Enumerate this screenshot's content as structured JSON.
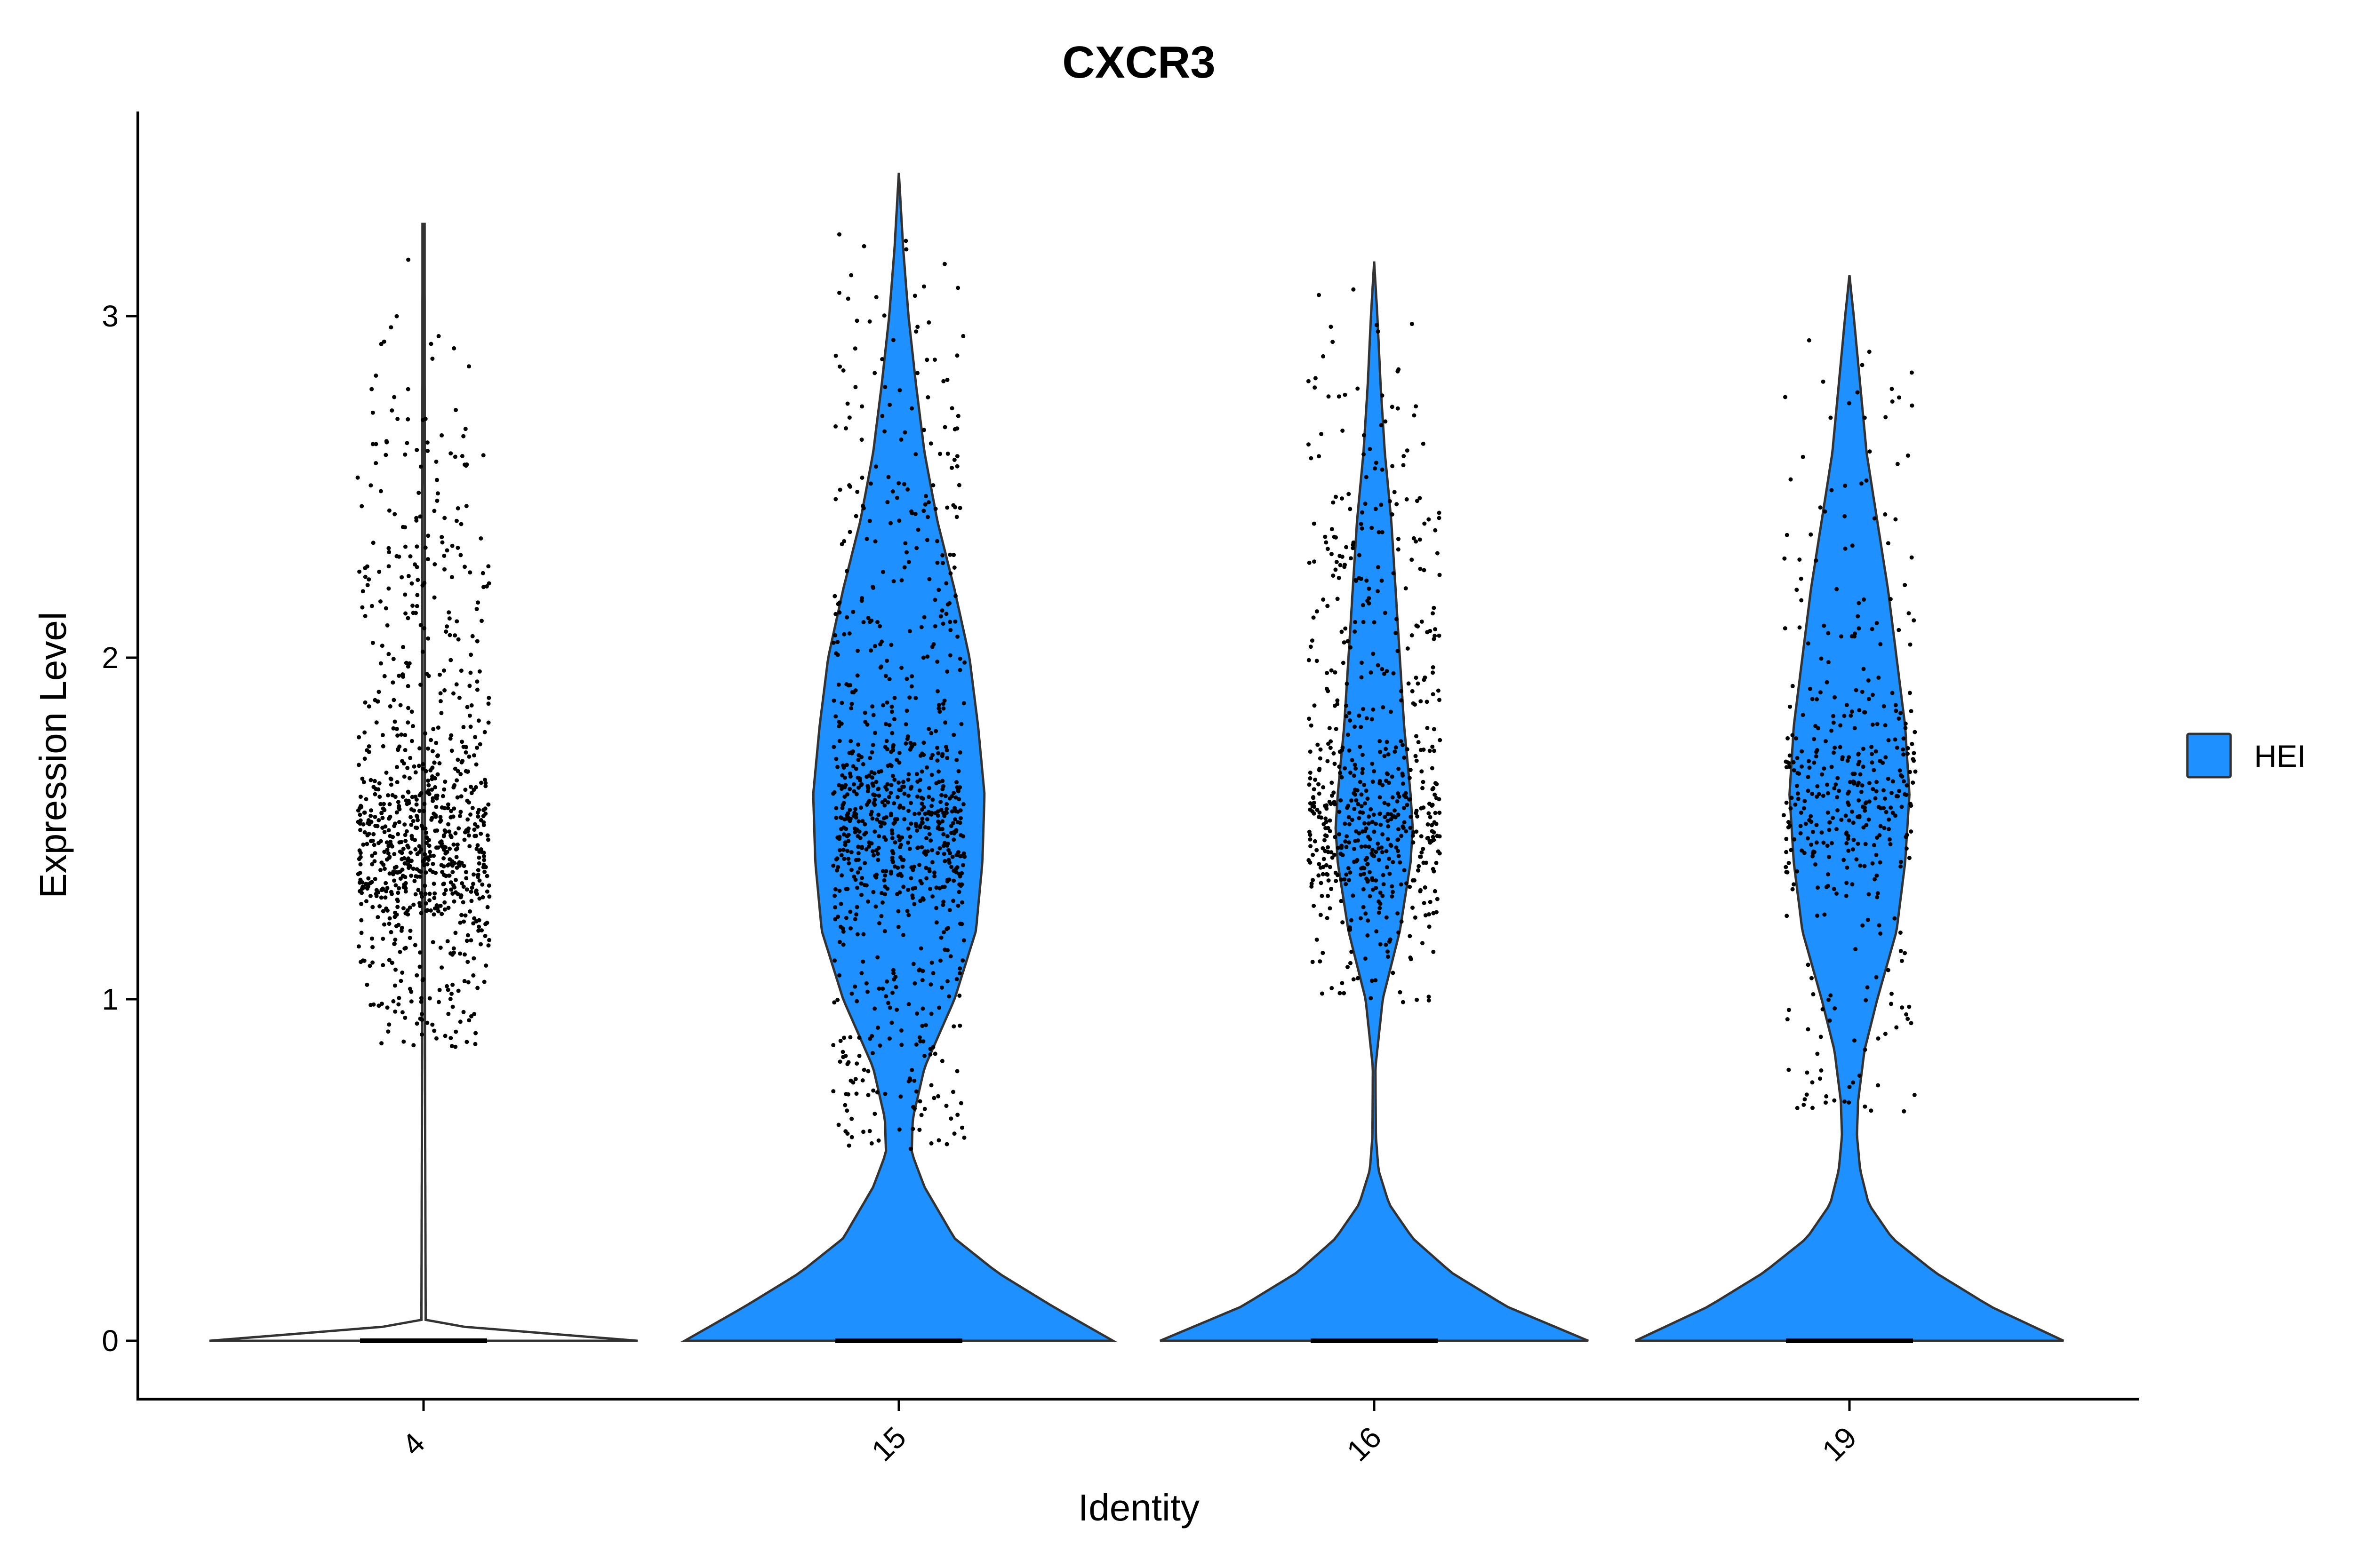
{
  "chart_data": {
    "type": "violin",
    "title": "CXCR3",
    "xlabel": "Identity",
    "ylabel": "Expression Level",
    "categories": [
      "4",
      "15",
      "16",
      "19"
    ],
    "ylim": [
      -0.17,
      3.6
    ],
    "yticks": [
      0,
      1,
      2,
      3
    ],
    "x_tick_rotation": 45,
    "fill_color": "#1E90FF",
    "outline_color": "#333333",
    "point_color": "#000000",
    "grid": false,
    "legend": {
      "position": "right",
      "entries": [
        {
          "label": "HEI",
          "color": "#1E90FF"
        }
      ]
    },
    "series": [
      {
        "category": "4",
        "max": 3.27,
        "density_profile": [
          [
            0,
            1.0
          ],
          [
            0.05,
            0.01
          ],
          [
            1.0,
            0.006
          ],
          [
            2.0,
            0.006
          ],
          [
            3.27,
            0.005
          ]
        ],
        "point_cloud": {
          "min": 0.86,
          "max": 3.2,
          "peak": 1.45,
          "count": 900
        }
      },
      {
        "category": "15",
        "max": 3.42,
        "density_profile": [
          [
            0,
            1.0
          ],
          [
            0.1,
            0.72
          ],
          [
            0.2,
            0.46
          ],
          [
            0.3,
            0.26
          ],
          [
            0.45,
            0.12
          ],
          [
            0.55,
            0.06
          ],
          [
            0.65,
            0.065
          ],
          [
            0.8,
            0.12
          ],
          [
            1.0,
            0.26
          ],
          [
            1.2,
            0.36
          ],
          [
            1.4,
            0.39
          ],
          [
            1.6,
            0.4
          ],
          [
            1.8,
            0.37
          ],
          [
            2.0,
            0.33
          ],
          [
            2.2,
            0.26
          ],
          [
            2.4,
            0.18
          ],
          [
            2.6,
            0.12
          ],
          [
            2.8,
            0.08
          ],
          [
            3.0,
            0.045
          ],
          [
            3.2,
            0.02
          ],
          [
            3.42,
            0.0
          ]
        ],
        "point_cloud": {
          "min": 0.55,
          "max": 3.42,
          "peak": 1.5,
          "count": 900
        }
      },
      {
        "category": "16",
        "max": 3.16,
        "density_profile": [
          [
            0,
            1.0
          ],
          [
            0.1,
            0.62
          ],
          [
            0.2,
            0.36
          ],
          [
            0.3,
            0.18
          ],
          [
            0.4,
            0.07
          ],
          [
            0.5,
            0.02
          ],
          [
            0.6,
            0.008
          ],
          [
            0.8,
            0.006
          ],
          [
            1.0,
            0.04
          ],
          [
            1.2,
            0.12
          ],
          [
            1.4,
            0.17
          ],
          [
            1.5,
            0.18
          ],
          [
            1.6,
            0.17
          ],
          [
            1.8,
            0.14
          ],
          [
            2.0,
            0.12
          ],
          [
            2.2,
            0.1
          ],
          [
            2.4,
            0.08
          ],
          [
            2.6,
            0.05
          ],
          [
            2.8,
            0.03
          ],
          [
            3.0,
            0.015
          ],
          [
            3.16,
            0.0
          ]
        ],
        "point_cloud": {
          "min": 0.98,
          "max": 3.16,
          "peak": 1.5,
          "count": 650
        }
      },
      {
        "category": "19",
        "max": 3.12,
        "density_profile": [
          [
            0,
            1.0
          ],
          [
            0.1,
            0.66
          ],
          [
            0.2,
            0.4
          ],
          [
            0.3,
            0.2
          ],
          [
            0.4,
            0.09
          ],
          [
            0.5,
            0.05
          ],
          [
            0.6,
            0.035
          ],
          [
            0.7,
            0.04
          ],
          [
            0.85,
            0.07
          ],
          [
            1.0,
            0.13
          ],
          [
            1.2,
            0.22
          ],
          [
            1.4,
            0.26
          ],
          [
            1.6,
            0.28
          ],
          [
            1.8,
            0.26
          ],
          [
            2.0,
            0.22
          ],
          [
            2.2,
            0.18
          ],
          [
            2.4,
            0.13
          ],
          [
            2.6,
            0.08
          ],
          [
            2.8,
            0.05
          ],
          [
            3.0,
            0.02
          ],
          [
            3.12,
            0.0
          ]
        ],
        "point_cloud": {
          "min": 0.67,
          "max": 3.12,
          "peak": 1.6,
          "count": 420
        }
      }
    ]
  }
}
